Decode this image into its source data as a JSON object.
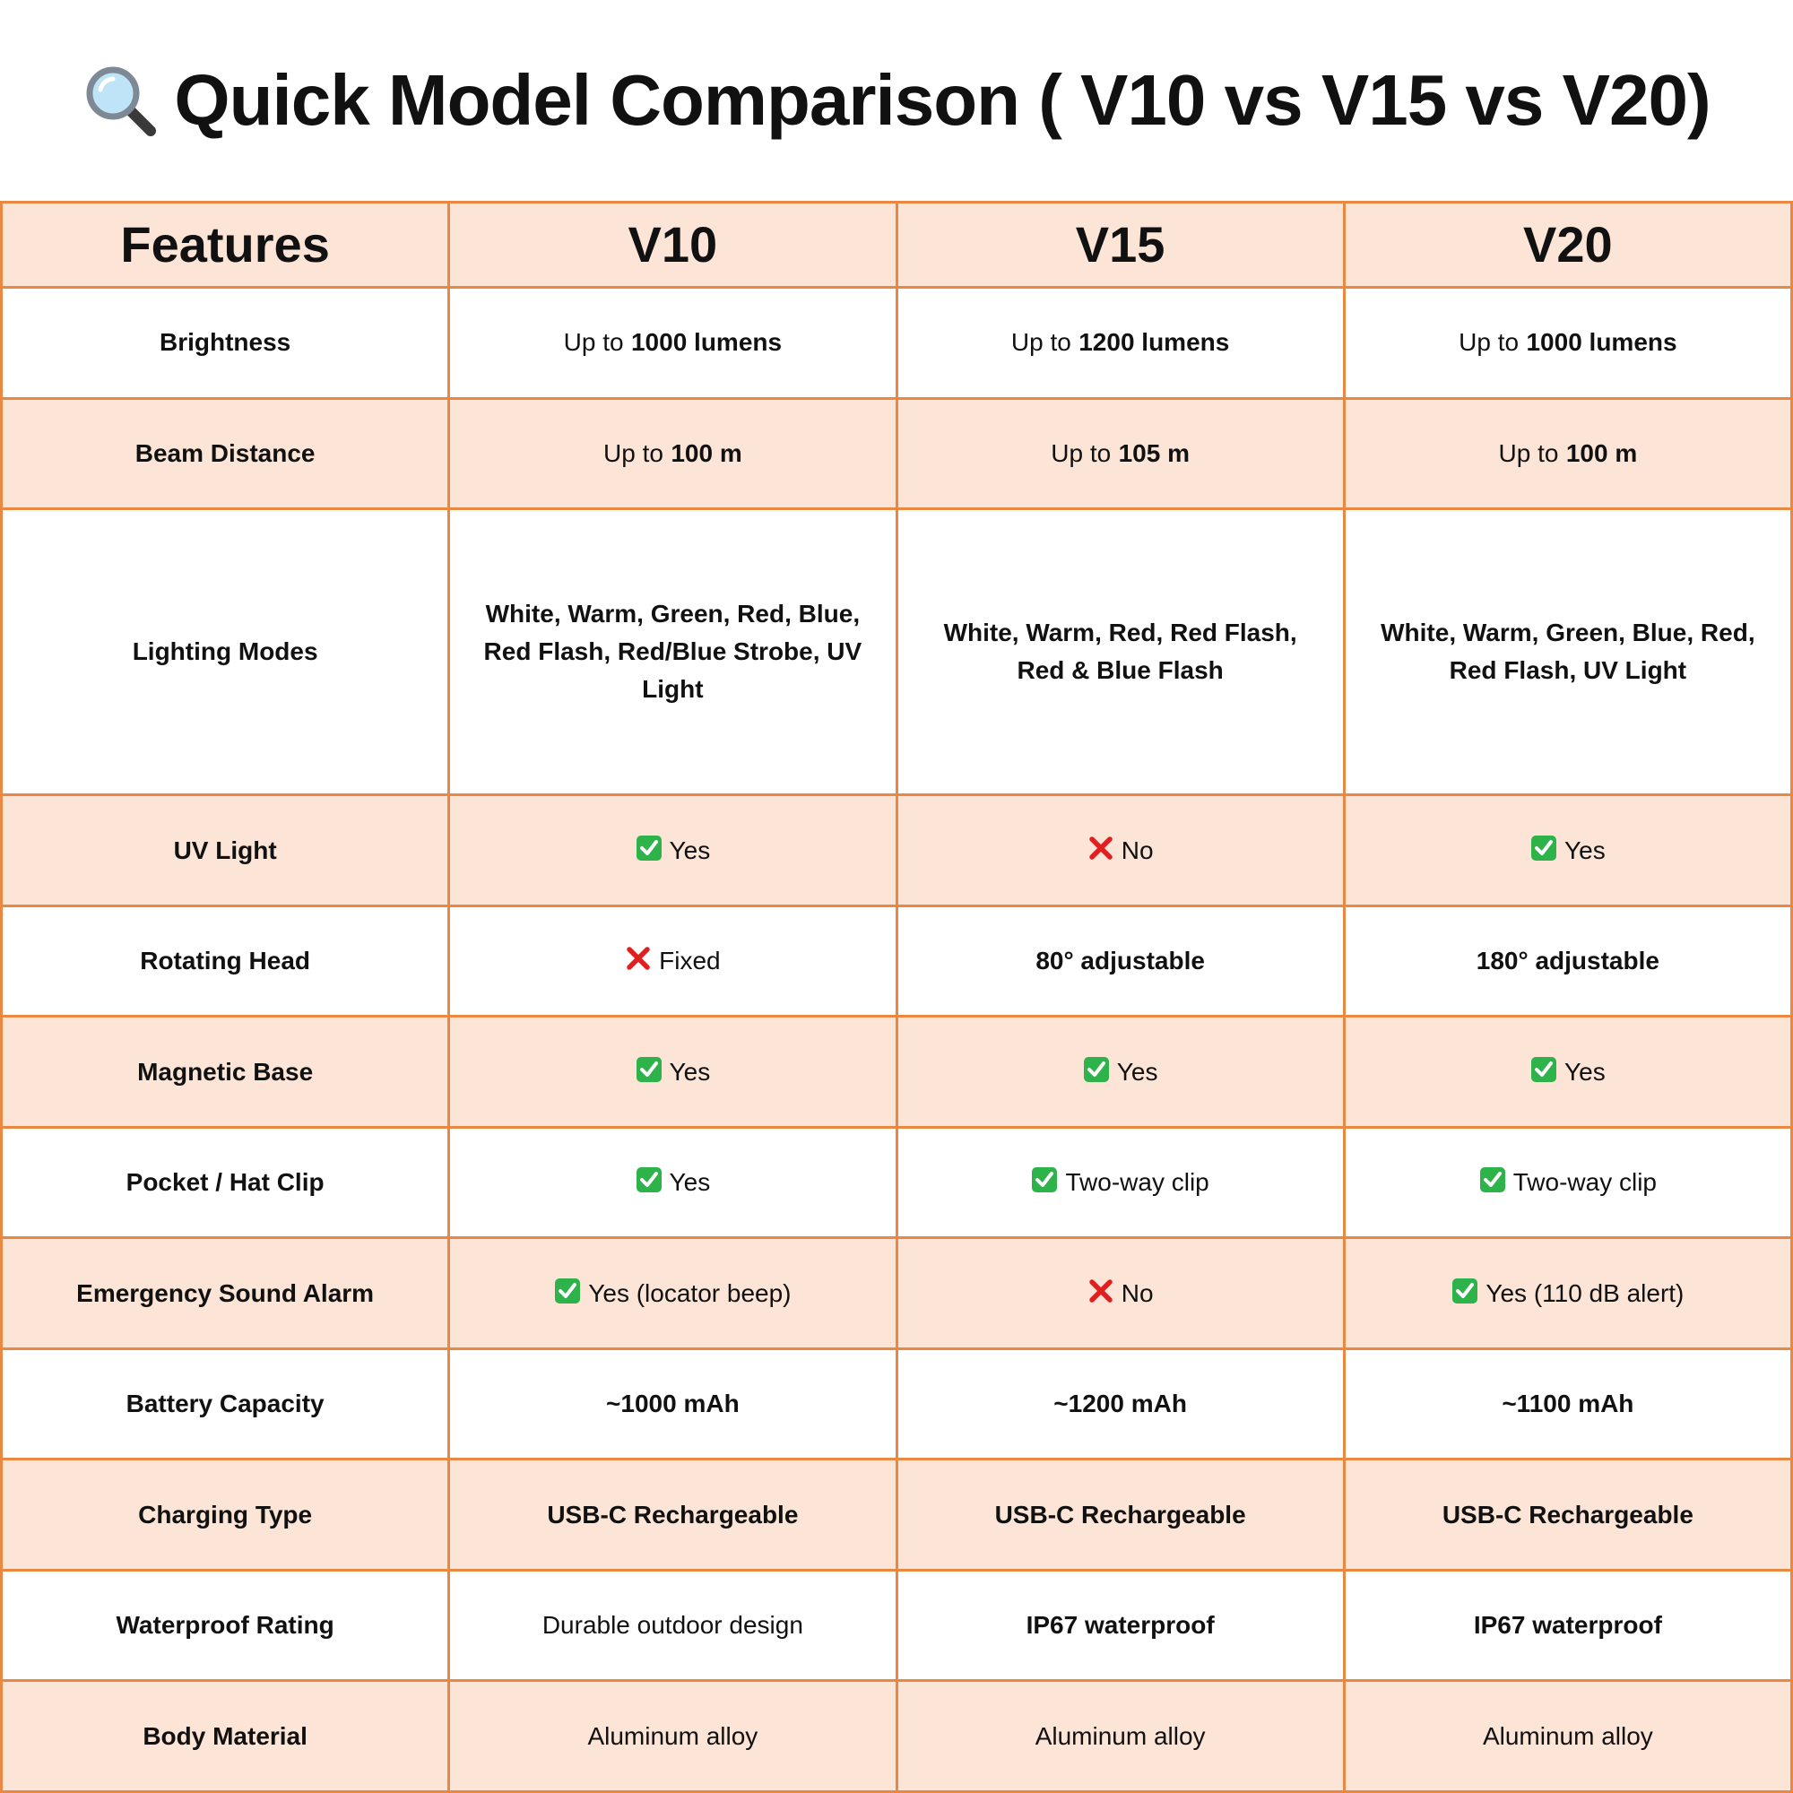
{
  "header": {
    "title": "Quick Model Comparison ( V10 vs V15 vs V20)"
  },
  "table": {
    "header": [
      "Features",
      "V10",
      "V15",
      "V20"
    ],
    "rows": [
      {
        "feature": "Brightness",
        "cells": [
          {
            "parts": [
              {
                "text": "Up to"
              },
              {
                "text": "1000 lumens",
                "bold": true
              }
            ]
          },
          {
            "parts": [
              {
                "text": "Up to"
              },
              {
                "text": "1200 lumens",
                "bold": true
              }
            ]
          },
          {
            "parts": [
              {
                "text": "Up to"
              },
              {
                "text": "1000 lumens",
                "bold": true
              }
            ]
          }
        ]
      },
      {
        "feature": "Beam Distance",
        "cells": [
          {
            "parts": [
              {
                "text": "Up to"
              },
              {
                "text": "100 m",
                "bold": true
              }
            ]
          },
          {
            "parts": [
              {
                "text": "Up to"
              },
              {
                "text": "105 m",
                "bold": true
              }
            ]
          },
          {
            "parts": [
              {
                "text": "Up to"
              },
              {
                "text": "100 m",
                "bold": true
              }
            ]
          }
        ]
      },
      {
        "feature": "Lighting Modes",
        "cells": [
          {
            "parts": [
              {
                "text": "White, Warm, Green, Red, Blue, Red Flash, Red/Blue Strobe, UV Light",
                "bold": true
              }
            ]
          },
          {
            "parts": [
              {
                "text": "White, Warm, Red, Red Flash, Red & Blue Flash",
                "bold": true
              }
            ]
          },
          {
            "parts": [
              {
                "text": "White, Warm, Green, Blue, Red, Red Flash, UV Light",
                "bold": true
              }
            ]
          }
        ]
      },
      {
        "feature": "UV Light",
        "cells": [
          {
            "icon": "check",
            "parts": [
              {
                "text": "Yes"
              }
            ]
          },
          {
            "icon": "cross",
            "parts": [
              {
                "text": "No"
              }
            ]
          },
          {
            "icon": "check",
            "parts": [
              {
                "text": "Yes"
              }
            ]
          }
        ]
      },
      {
        "feature": "Rotating Head",
        "cells": [
          {
            "icon": "cross",
            "parts": [
              {
                "text": "Fixed"
              }
            ]
          },
          {
            "parts": [
              {
                "text": "80° adjustable",
                "bold": true
              }
            ]
          },
          {
            "parts": [
              {
                "text": "180° adjustable",
                "bold": true
              }
            ]
          }
        ]
      },
      {
        "feature": "Magnetic Base",
        "cells": [
          {
            "icon": "check",
            "parts": [
              {
                "text": "Yes"
              }
            ]
          },
          {
            "icon": "check",
            "parts": [
              {
                "text": "Yes"
              }
            ]
          },
          {
            "icon": "check",
            "parts": [
              {
                "text": "Yes"
              }
            ]
          }
        ]
      },
      {
        "feature": "Pocket / Hat Clip",
        "cells": [
          {
            "icon": "check",
            "parts": [
              {
                "text": "Yes"
              }
            ]
          },
          {
            "icon": "check",
            "parts": [
              {
                "text": "Two-way clip"
              }
            ]
          },
          {
            "icon": "check",
            "parts": [
              {
                "text": "Two-way clip"
              }
            ]
          }
        ]
      },
      {
        "feature": "Emergency Sound Alarm",
        "cells": [
          {
            "icon": "check",
            "parts": [
              {
                "text": "Yes (locator beep)"
              }
            ]
          },
          {
            "icon": "cross",
            "parts": [
              {
                "text": "No"
              }
            ]
          },
          {
            "icon": "check",
            "parts": [
              {
                "text": "Yes (110 dB alert)"
              }
            ]
          }
        ]
      },
      {
        "feature": "Battery Capacity",
        "cells": [
          {
            "parts": [
              {
                "text": "~1000 mAh",
                "bold": true
              }
            ]
          },
          {
            "parts": [
              {
                "text": "~1200 mAh",
                "bold": true
              }
            ]
          },
          {
            "parts": [
              {
                "text": "~1100 mAh",
                "bold": true
              }
            ]
          }
        ]
      },
      {
        "feature": "Charging Type",
        "cells": [
          {
            "parts": [
              {
                "text": "USB-C Rechargeable",
                "bold": true
              }
            ]
          },
          {
            "parts": [
              {
                "text": "USB-C Rechargeable",
                "bold": true
              }
            ]
          },
          {
            "parts": [
              {
                "text": "USB-C Rechargeable",
                "bold": true
              }
            ]
          }
        ]
      },
      {
        "feature": "Waterproof Rating",
        "cells": [
          {
            "parts": [
              {
                "text": "Durable outdoor design"
              }
            ]
          },
          {
            "parts": [
              {
                "text": "IP67 waterproof",
                "bold": true
              }
            ]
          },
          {
            "parts": [
              {
                "text": "IP67 waterproof",
                "bold": true
              }
            ]
          }
        ]
      },
      {
        "feature": "Body Material",
        "cells": [
          {
            "parts": [
              {
                "text": "Aluminum alloy"
              }
            ]
          },
          {
            "parts": [
              {
                "text": "Aluminum alloy"
              }
            ]
          },
          {
            "parts": [
              {
                "text": "Aluminum alloy"
              }
            ]
          }
        ]
      }
    ]
  }
}
